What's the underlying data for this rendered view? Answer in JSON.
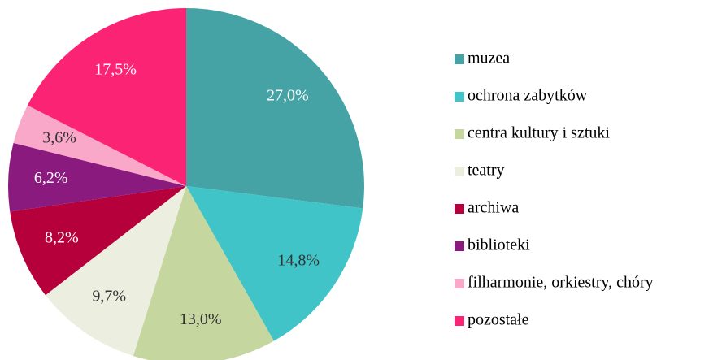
{
  "chart_data": {
    "type": "pie",
    "categories": [
      "muzea",
      "ochrona zabytków",
      "centra kultury i sztuki",
      "teatry",
      "archiwa",
      "biblioteki",
      "filharmonie, orkiestry, chóry",
      "pozostałe"
    ],
    "values": [
      27.0,
      14.8,
      13.0,
      9.7,
      8.2,
      6.2,
      3.6,
      17.5
    ],
    "value_labels": [
      "27,0%",
      "14,8%",
      "13,0%",
      "9,7%",
      "8,2%",
      "6,2%",
      "3,6%",
      "17,5%"
    ],
    "colors": [
      "#45a3a6",
      "#40c4c8",
      "#c5d69e",
      "#ecefe0",
      "#b5003c",
      "#8b1a7e",
      "#f9a8c9",
      "#fb2474"
    ],
    "legend": "right"
  }
}
